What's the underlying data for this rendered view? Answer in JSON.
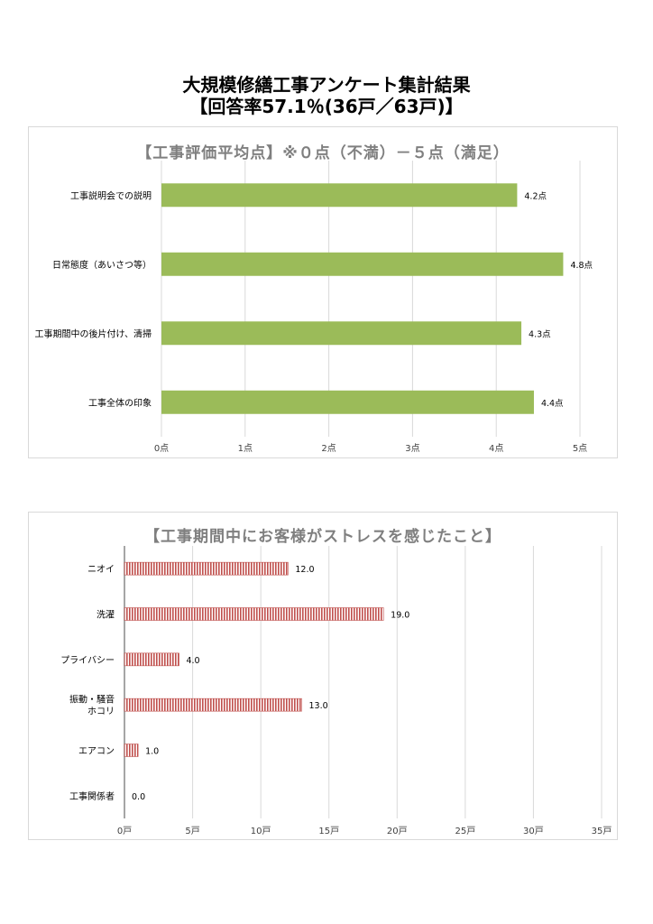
{
  "page": {
    "title_line1": "大規模修繕工事アンケート集計結果",
    "title_line2": "【回答率57.1％(36戸／63戸)】"
  },
  "colors": {
    "bar1": "#9bbb59",
    "bar2_stripe": "#c0504d",
    "grid": "#d9d9d9",
    "title": "#7f7f7f"
  },
  "chart_data": [
    {
      "type": "bar",
      "orientation": "horizontal",
      "title": "【工事評価平均点】※０点（不満）－５点（満足）",
      "categories": [
        "工事説明会での説明",
        "日常態度（あいさつ等）",
        "工事期間中の後片付け、清掃",
        "工事全体の印象"
      ],
      "values": [
        4.25,
        4.8,
        4.3,
        4.45
      ],
      "data_labels": [
        "4.2点",
        "4.8点",
        "4.3点",
        "4.4点"
      ],
      "xlim": [
        0,
        5
      ],
      "ticks": [
        0,
        1,
        2,
        3,
        4,
        5
      ],
      "tick_labels": [
        "0点",
        "1点",
        "2点",
        "3点",
        "4点",
        "5点"
      ],
      "grid": true
    },
    {
      "type": "bar",
      "orientation": "horizontal",
      "title": "【工事期間中にお客様がストレスを感じたこと】",
      "categories": [
        "ニオイ",
        "洗濯",
        "プライバシー",
        "振動・騒音\nホコリ",
        "エアコン",
        "工事関係者"
      ],
      "values": [
        12,
        19,
        4,
        13,
        1,
        0
      ],
      "data_labels": [
        "12.0",
        "19.0",
        "4.0",
        "13.0",
        "1.0",
        "0.0"
      ],
      "xlim": [
        0,
        35
      ],
      "ticks": [
        0,
        5,
        10,
        15,
        20,
        25,
        30,
        35
      ],
      "tick_labels": [
        "0戸",
        "5戸",
        "10戸",
        "15戸",
        "20戸",
        "25戸",
        "30戸",
        "35戸"
      ],
      "grid": true
    }
  ]
}
